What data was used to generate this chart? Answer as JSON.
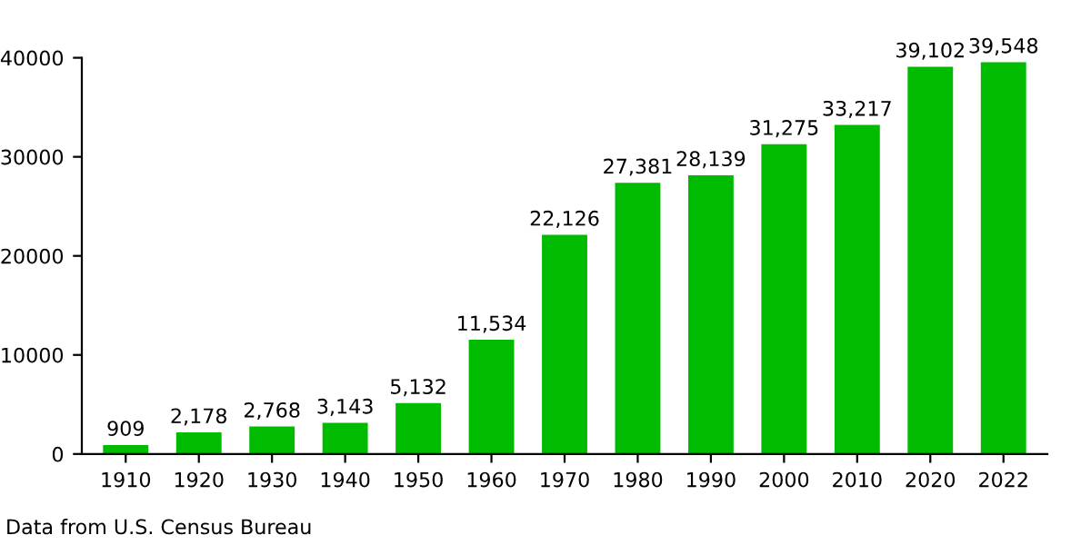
{
  "chart_data": {
    "type": "bar",
    "categories": [
      "1910",
      "1920",
      "1930",
      "1940",
      "1950",
      "1960",
      "1970",
      "1980",
      "1990",
      "2000",
      "2010",
      "2020",
      "2022"
    ],
    "values": [
      909,
      2178,
      2768,
      3143,
      5132,
      11534,
      22126,
      27381,
      28139,
      31275,
      33217,
      39102,
      39548
    ],
    "value_labels": [
      "909",
      "2,178",
      "2,768",
      "3,143",
      "5,132",
      "11,534",
      "22,126",
      "27,381",
      "28,139",
      "31,275",
      "33,217",
      "39,102",
      "39,548"
    ],
    "color": "#00bb00",
    "ylim": [
      0,
      40000
    ],
    "yticks": [
      0,
      10000,
      20000,
      30000,
      40000
    ],
    "grid": false,
    "annotations": [
      "Data from U.S. Census Bureau"
    ]
  }
}
